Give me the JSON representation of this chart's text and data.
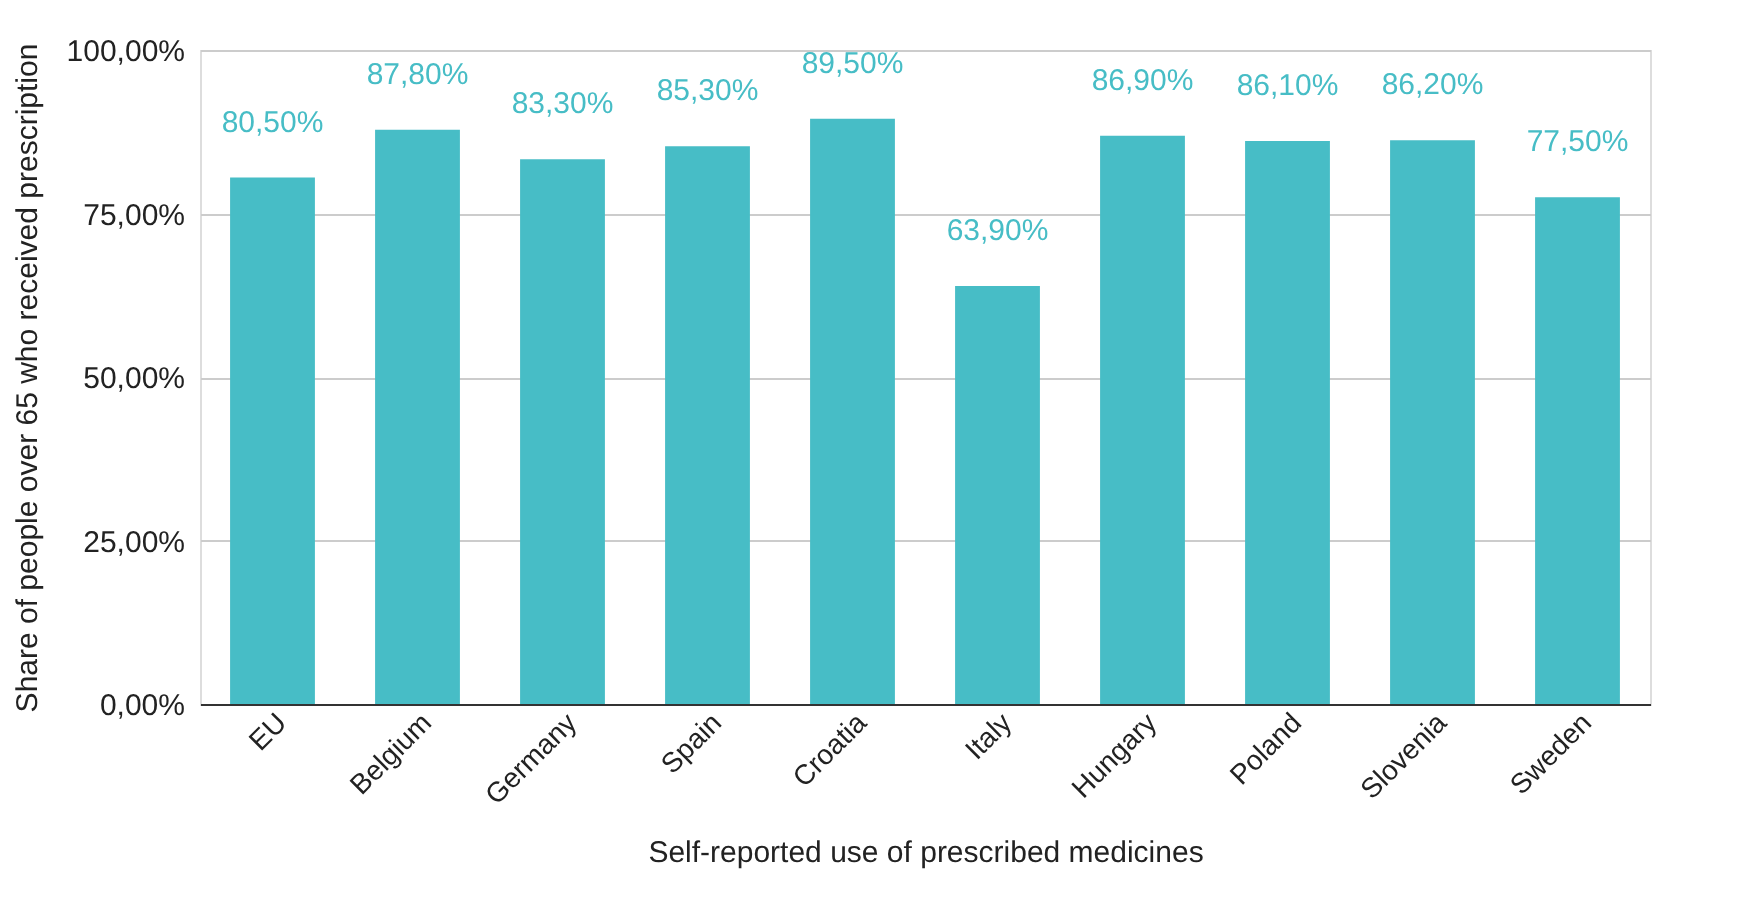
{
  "chart_data": {
    "type": "bar",
    "xlabel": "Self-reported use of prescribed medicines",
    "ylabel": "Share of people over 65 who received prescription",
    "categories": [
      "EU",
      "Belgium",
      "Germany",
      "Spain",
      "Croatia",
      "Italy",
      "Hungary",
      "Poland",
      "Slovenia",
      "Sweden"
    ],
    "values": [
      80.5,
      87.8,
      83.3,
      85.3,
      89.5,
      63.9,
      86.9,
      86.1,
      86.2,
      77.5
    ],
    "value_labels": [
      "80,50%",
      "87,80%",
      "83,30%",
      "85,30%",
      "89,50%",
      "63,90%",
      "86,90%",
      "86,10%",
      "86,20%",
      "77,50%"
    ],
    "color": "#47bdc6",
    "ylim": [
      0,
      100
    ],
    "yticks": [
      {
        "value": 0,
        "label": "0,00%"
      },
      {
        "value": 25,
        "label": "25,00%"
      },
      {
        "value": 50,
        "label": "50,00%"
      },
      {
        "value": 75,
        "label": "75,00%"
      },
      {
        "value": 100,
        "label": "100,00%"
      }
    ],
    "grid": "y"
  }
}
